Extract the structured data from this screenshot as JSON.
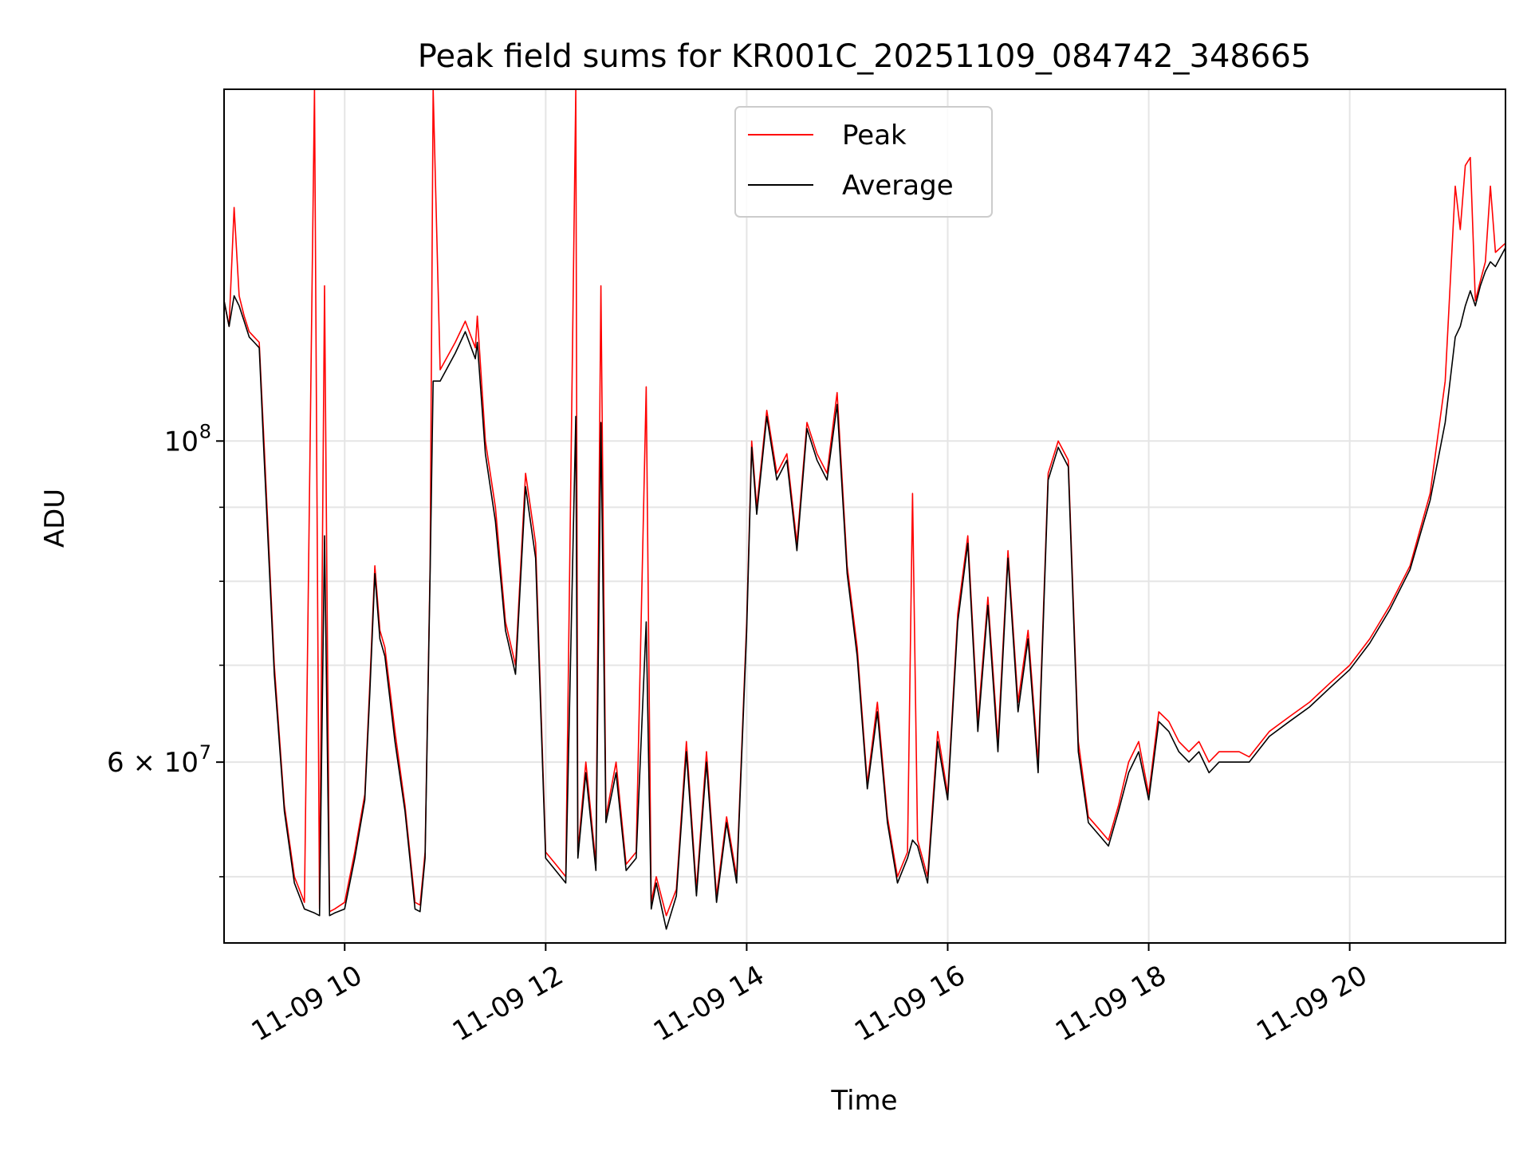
{
  "chart_data": {
    "type": "line",
    "title": "Peak field sums for KR001C_20251109_084742_348665",
    "xlabel": "Time",
    "ylabel": "ADU",
    "y_scale": "log",
    "xlim_hours": [
      8.8,
      21.55
    ],
    "ylim": [
      45000000,
      175000000
    ],
    "grid": true,
    "legend_position": "upper center",
    "x_ticks": [
      {
        "value": 10,
        "label": "11-09 10"
      },
      {
        "value": 12,
        "label": "11-09 12"
      },
      {
        "value": 14,
        "label": "11-09 14"
      },
      {
        "value": 16,
        "label": "11-09 16"
      },
      {
        "value": 18,
        "label": "11-09 18"
      },
      {
        "value": 20,
        "label": "11-09 20"
      }
    ],
    "y_major_ticks": [
      {
        "value": 60000000,
        "base": "6 × 10",
        "exp": "7"
      },
      {
        "value": 100000000,
        "base": "10",
        "exp": "8"
      }
    ],
    "y_minor_ticks": [
      50000000,
      70000000,
      80000000,
      90000000,
      200000000
    ],
    "series": [
      {
        "name": "Peak",
        "color": "#ff0000",
        "x": [
          8.8,
          8.85,
          8.9,
          8.95,
          9.0,
          9.05,
          9.1,
          9.15,
          9.2,
          9.3,
          9.4,
          9.5,
          9.6,
          9.7,
          9.75,
          9.8,
          9.85,
          9.9,
          10.0,
          10.1,
          10.2,
          10.25,
          10.3,
          10.35,
          10.4,
          10.5,
          10.6,
          10.7,
          10.75,
          10.8,
          10.85,
          10.88,
          10.95,
          11.1,
          11.2,
          11.3,
          11.32,
          11.4,
          11.5,
          11.6,
          11.7,
          11.8,
          11.9,
          12.0,
          12.1,
          12.2,
          12.3,
          12.32,
          12.4,
          12.5,
          12.55,
          12.6,
          12.7,
          12.8,
          12.9,
          13.0,
          13.05,
          13.1,
          13.2,
          13.3,
          13.4,
          13.5,
          13.6,
          13.7,
          13.8,
          13.9,
          14.0,
          14.05,
          14.1,
          14.2,
          14.3,
          14.4,
          14.5,
          14.6,
          14.7,
          14.8,
          14.9,
          15.0,
          15.1,
          15.2,
          15.3,
          15.4,
          15.5,
          15.6,
          15.65,
          15.7,
          15.8,
          15.9,
          16.0,
          16.1,
          16.2,
          16.3,
          16.4,
          16.5,
          16.6,
          16.7,
          16.8,
          16.9,
          17.0,
          17.1,
          17.2,
          17.3,
          17.4,
          17.5,
          17.6,
          17.7,
          17.8,
          17.9,
          18.0,
          18.1,
          18.2,
          18.3,
          18.4,
          18.5,
          18.6,
          18.7,
          18.8,
          18.9,
          19.0,
          19.2,
          19.4,
          19.6,
          19.8,
          20.0,
          20.2,
          20.4,
          20.6,
          20.8,
          20.95,
          21.05,
          21.1,
          21.15,
          21.2,
          21.25,
          21.3,
          21.35,
          21.4,
          21.45,
          21.5,
          21.55
        ],
        "y": [
          125000000,
          120000000,
          145000000,
          126000000,
          122000000,
          119000000,
          118000000,
          117000000,
          99000000,
          70000000,
          56000000,
          50000000,
          48000000,
          175000000,
          47500000,
          128000000,
          47300000,
          47500000,
          48000000,
          52000000,
          57000000,
          68000000,
          82000000,
          74000000,
          72000000,
          63000000,
          56000000,
          48000000,
          47800000,
          52000000,
          82000000,
          175000000,
          112000000,
          117000000,
          121000000,
          116000000,
          122000000,
          100000000,
          90000000,
          75000000,
          70000000,
          95000000,
          85000000,
          52000000,
          51000000,
          50000000,
          175000000,
          52000000,
          60000000,
          51000000,
          128000000,
          55000000,
          60000000,
          51000000,
          52000000,
          109000000,
          48000000,
          50000000,
          47000000,
          49000000,
          62000000,
          49000000,
          61000000,
          48500000,
          55000000,
          50000000,
          75000000,
          100000000,
          90000000,
          105000000,
          95000000,
          98000000,
          85000000,
          103000000,
          98000000,
          95000000,
          108000000,
          82000000,
          72000000,
          58000000,
          66000000,
          55000000,
          50000000,
          52000000,
          92000000,
          53000000,
          50000000,
          63000000,
          57000000,
          76000000,
          86000000,
          64000000,
          78000000,
          62000000,
          84000000,
          66000000,
          74000000,
          60000000,
          95000000,
          100000000,
          97000000,
          62000000,
          55000000,
          54000000,
          53000000,
          56000000,
          60000000,
          62000000,
          57000000,
          65000000,
          64000000,
          62000000,
          61000000,
          62000000,
          60000000,
          61000000,
          61000000,
          61000000,
          60500000,
          63000000,
          64500000,
          66000000,
          68000000,
          70000000,
          73000000,
          77000000,
          82000000,
          92000000,
          110000000,
          150000000,
          140000000,
          155000000,
          157000000,
          125000000,
          129000000,
          133000000,
          150000000,
          135000000,
          136000000,
          137000000
        ]
      },
      {
        "name": "Average",
        "color": "#000000",
        "x": [
          8.8,
          8.85,
          8.9,
          8.95,
          9.0,
          9.05,
          9.1,
          9.15,
          9.2,
          9.3,
          9.4,
          9.5,
          9.6,
          9.7,
          9.75,
          9.8,
          9.85,
          9.9,
          10.0,
          10.1,
          10.2,
          10.25,
          10.3,
          10.35,
          10.4,
          10.5,
          10.6,
          10.7,
          10.75,
          10.8,
          10.85,
          10.88,
          10.95,
          11.1,
          11.2,
          11.3,
          11.32,
          11.4,
          11.5,
          11.6,
          11.7,
          11.8,
          11.9,
          12.0,
          12.1,
          12.2,
          12.3,
          12.32,
          12.4,
          12.5,
          12.55,
          12.6,
          12.7,
          12.8,
          12.9,
          13.0,
          13.05,
          13.1,
          13.2,
          13.3,
          13.4,
          13.5,
          13.6,
          13.7,
          13.8,
          13.9,
          14.0,
          14.05,
          14.1,
          14.2,
          14.3,
          14.4,
          14.5,
          14.6,
          14.7,
          14.8,
          14.9,
          15.0,
          15.1,
          15.2,
          15.3,
          15.4,
          15.5,
          15.6,
          15.65,
          15.7,
          15.8,
          15.9,
          16.0,
          16.1,
          16.2,
          16.3,
          16.4,
          16.5,
          16.6,
          16.7,
          16.8,
          16.9,
          17.0,
          17.1,
          17.2,
          17.3,
          17.4,
          17.5,
          17.6,
          17.7,
          17.8,
          17.9,
          18.0,
          18.1,
          18.2,
          18.3,
          18.4,
          18.5,
          18.6,
          18.7,
          18.8,
          18.9,
          19.0,
          19.2,
          19.4,
          19.6,
          19.8,
          20.0,
          20.2,
          20.4,
          20.6,
          20.8,
          20.95,
          21.05,
          21.1,
          21.15,
          21.2,
          21.25,
          21.3,
          21.35,
          21.4,
          21.45,
          21.5,
          21.55
        ],
        "y": [
          125000000,
          120000000,
          126000000,
          124000000,
          121000000,
          118000000,
          117000000,
          116000000,
          97000000,
          69000000,
          55500000,
          49500000,
          47500000,
          47200000,
          47000000,
          86000000,
          47000000,
          47200000,
          47500000,
          51500000,
          56500000,
          67000000,
          81000000,
          73000000,
          71000000,
          62000000,
          55500000,
          47500000,
          47300000,
          51500000,
          81000000,
          110000000,
          110000000,
          115000000,
          119000000,
          114000000,
          117000000,
          98000000,
          88000000,
          74000000,
          69000000,
          93000000,
          83000000,
          51500000,
          50500000,
          49500000,
          104000000,
          51500000,
          59000000,
          50500000,
          103000000,
          54500000,
          59000000,
          50500000,
          51500000,
          75000000,
          47500000,
          49500000,
          46000000,
          48500000,
          61000000,
          48500000,
          60000000,
          48000000,
          54500000,
          49500000,
          74000000,
          99000000,
          89000000,
          104000000,
          94000000,
          97000000,
          84000000,
          102000000,
          97000000,
          94000000,
          106000000,
          81000000,
          71000000,
          57500000,
          65000000,
          54500000,
          49500000,
          51500000,
          53000000,
          52500000,
          49500000,
          62000000,
          56500000,
          75000000,
          85000000,
          63000000,
          77000000,
          61000000,
          83000000,
          65000000,
          73000000,
          59000000,
          94000000,
          99000000,
          96000000,
          61000000,
          54500000,
          53500000,
          52500000,
          55500000,
          59000000,
          61000000,
          56500000,
          64000000,
          63000000,
          61000000,
          60000000,
          61000000,
          59000000,
          60000000,
          60000000,
          60000000,
          60000000,
          62500000,
          64000000,
          65500000,
          67500000,
          69500000,
          72500000,
          76500000,
          81500000,
          91000000,
          103000000,
          118000000,
          120000000,
          124000000,
          127000000,
          124000000,
          128000000,
          131000000,
          133000000,
          132000000,
          134000000,
          136000000
        ]
      }
    ]
  }
}
